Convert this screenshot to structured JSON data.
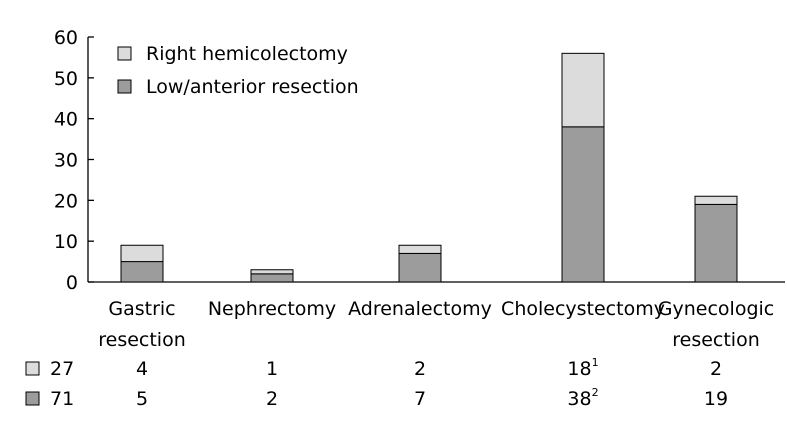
{
  "chart_data": {
    "type": "bar",
    "stacked": true,
    "categories": [
      [
        "Gastric",
        "resection"
      ],
      [
        "Nephrectomy"
      ],
      [
        "Adrenalectomy"
      ],
      [
        "Cholecystectomy"
      ],
      [
        "Gynecologic",
        "resection"
      ]
    ],
    "series": [
      {
        "name": "Low/anterior resection",
        "values": [
          5,
          2,
          7,
          38,
          19
        ],
        "color": "#9c9c9c"
      },
      {
        "name": "Right hemicolectomy",
        "values": [
          4,
          1,
          2,
          18,
          2
        ],
        "color": "#dcdcdc"
      }
    ],
    "legend_order": [
      "Right hemicolectomy",
      "Low/anterior resection"
    ],
    "legend_position": "top-left",
    "ylim": [
      0,
      60
    ],
    "yticks": [
      0,
      10,
      20,
      30,
      40,
      50,
      60
    ],
    "grid": false,
    "table": {
      "rows": [
        {
          "series": "Right hemicolectomy",
          "total": "27",
          "cells": [
            {
              "v": "4"
            },
            {
              "v": "1"
            },
            {
              "v": "2"
            },
            {
              "v": "18",
              "sup": "1"
            },
            {
              "v": "2"
            }
          ]
        },
        {
          "series": "Low/anterior resection",
          "total": "71",
          "cells": [
            {
              "v": "5"
            },
            {
              "v": "2"
            },
            {
              "v": "7"
            },
            {
              "v": "38",
              "sup": "2"
            },
            {
              "v": "19"
            }
          ]
        }
      ]
    }
  }
}
